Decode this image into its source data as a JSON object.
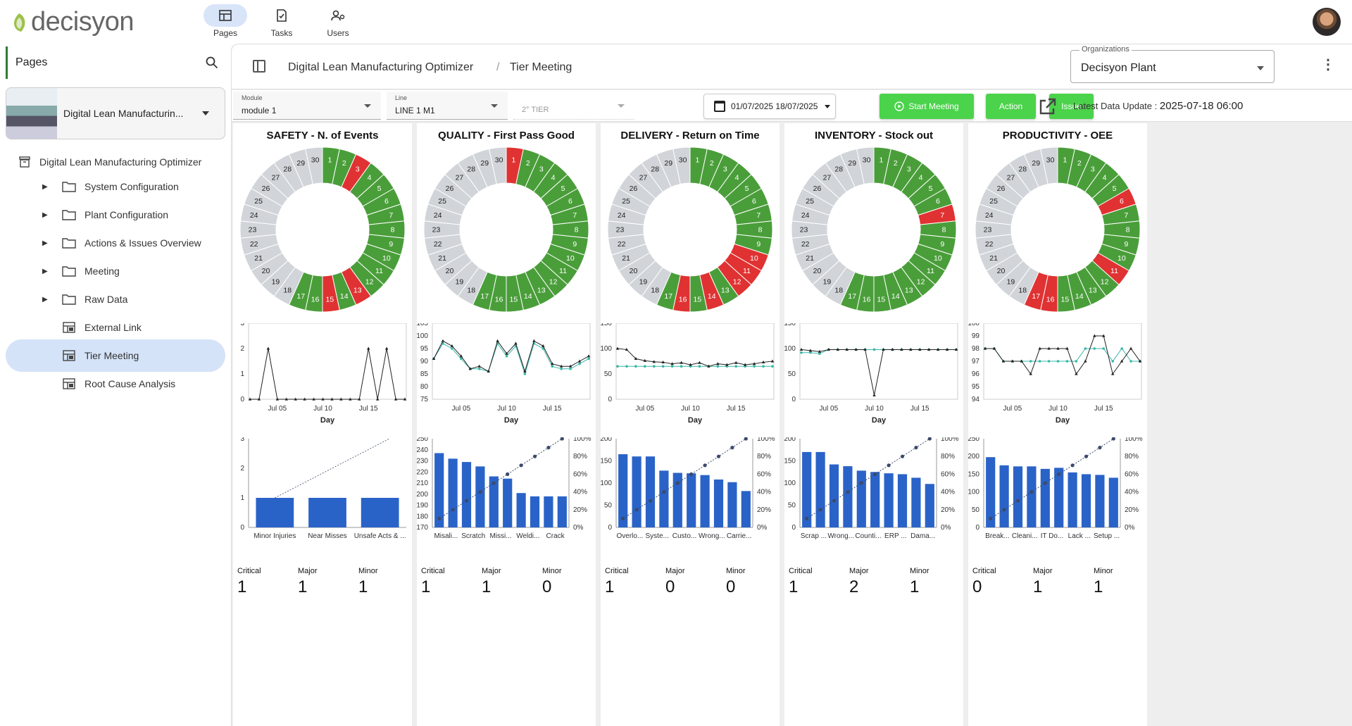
{
  "header": {
    "brand": "decisyon",
    "nav": [
      {
        "label": "Pages",
        "icon": "pages-icon",
        "active": true
      },
      {
        "label": "Tasks",
        "icon": "tasks-icon",
        "active": false
      },
      {
        "label": "Users",
        "icon": "users-icon",
        "active": false
      }
    ]
  },
  "sidebar": {
    "title": "Pages",
    "module_card": {
      "label": "Digital Lean Manufacturin..."
    },
    "root": "Digital Lean Manufacturing Optimizer",
    "items": [
      {
        "label": "System Configuration",
        "type": "folder",
        "expandable": true,
        "active": false
      },
      {
        "label": "Plant Configuration",
        "type": "folder",
        "expandable": true,
        "active": false
      },
      {
        "label": "Actions & Issues Overview",
        "type": "folder",
        "expandable": true,
        "active": false
      },
      {
        "label": "Meeting",
        "type": "folder",
        "expandable": true,
        "active": false
      },
      {
        "label": "Raw Data",
        "type": "folder",
        "expandable": true,
        "active": false
      },
      {
        "label": "External Link",
        "type": "page",
        "expandable": false,
        "active": false
      },
      {
        "label": "Tier Meeting",
        "type": "page",
        "expandable": false,
        "active": true
      },
      {
        "label": "Root Cause Analysis",
        "type": "page",
        "expandable": false,
        "active": false
      }
    ]
  },
  "breadcrumb": {
    "root": "Digital Lean Manufacturing Optimizer",
    "sep": "/",
    "current": "Tier Meeting"
  },
  "organization": {
    "label": "Organizations",
    "value": "Decisyon Plant"
  },
  "filters": {
    "module": {
      "label": "Module",
      "value": "module 1"
    },
    "line": {
      "label": "Line",
      "value": "LINE 1 M1"
    },
    "tier": {
      "placeholder": "2° TIER"
    },
    "date_range": "01/07/2025 18/07/2025",
    "buttons": {
      "start_meeting": "Start Meeting",
      "action": "Action",
      "issue": "Issue"
    },
    "latest_label": "Latest Data Update : ",
    "latest_value": "2025-07-18 06:00"
  },
  "colors": {
    "green": "#4a9e3a",
    "red": "#e03232",
    "grey": "#d1d5d9",
    "bar": "#2a63c8",
    "accent_line": "#39b7a9",
    "button_green": "#4bd34b"
  },
  "severity_labels": [
    "Critical",
    "Major",
    "Minor"
  ],
  "line_x_ticks": [
    "Jul 05",
    "Jul 10",
    "Jul 15"
  ],
  "line_x_label": "Day",
  "chart_data": [
    {
      "type": "donut",
      "title": "SAFETY - N. of Events",
      "days": 30,
      "status": [
        "g",
        "g",
        "r",
        "g",
        "g",
        "g",
        "g",
        "g",
        "g",
        "g",
        "g",
        "g",
        "r",
        "g",
        "r",
        "g",
        "g",
        "x",
        "x",
        "x",
        "x",
        "x",
        "x",
        "x",
        "x",
        "x",
        "x",
        "x",
        "x",
        "x"
      ],
      "line": {
        "ylim": [
          0,
          3
        ],
        "yticks": [
          0,
          1,
          2,
          3
        ],
        "series": [
          [
            0,
            0,
            2,
            0,
            0,
            0,
            0,
            0,
            0,
            0,
            0,
            0,
            0,
            2,
            0,
            2,
            0,
            0
          ]
        ],
        "markers": [
          "tri"
        ]
      },
      "pareto": {
        "categories": [
          "Minor Injuries",
          "Near Misses",
          "Unsafe Acts & ..."
        ],
        "values": [
          1,
          1,
          1
        ],
        "ylim": [
          0,
          3
        ],
        "yticks": [
          0,
          1,
          2,
          3
        ],
        "pct": null
      },
      "severity": {
        "Critical": 1,
        "Major": 1,
        "Minor": 1
      }
    },
    {
      "type": "donut",
      "title": "QUALITY - First Pass Good",
      "days": 30,
      "status": [
        "r",
        "g",
        "g",
        "g",
        "g",
        "g",
        "g",
        "g",
        "g",
        "g",
        "g",
        "g",
        "g",
        "g",
        "g",
        "g",
        "g",
        "x",
        "x",
        "x",
        "x",
        "x",
        "x",
        "x",
        "x",
        "x",
        "x",
        "x",
        "x",
        "x"
      ],
      "line": {
        "ylim": [
          75,
          105
        ],
        "yticks": [
          75,
          80,
          85,
          90,
          95,
          100,
          105
        ],
        "series": [
          [
            91,
            98,
            96,
            92,
            87,
            88,
            86,
            98,
            93,
            97,
            86,
            98,
            96,
            89,
            88,
            88,
            90,
            92
          ],
          [
            91,
            97,
            95,
            91,
            87,
            87,
            86,
            97,
            92,
            96,
            85,
            97,
            95,
            88,
            87,
            87,
            89,
            91
          ]
        ],
        "markers": [
          "tri",
          "dot"
        ]
      },
      "pareto": {
        "categories": [
          "Misali...",
          "Scratch",
          "Missi...",
          "Weldi...",
          "Crack"
        ],
        "values": [
          237,
          232,
          229,
          225,
          216,
          214,
          201,
          198,
          198,
          198
        ],
        "ylim": [
          170,
          250
        ],
        "yticks": [
          170,
          180,
          190,
          200,
          210,
          220,
          230,
          240,
          250
        ],
        "pct": [
          10,
          20,
          30,
          40,
          50,
          60,
          70,
          80,
          90,
          100
        ]
      },
      "severity": {
        "Critical": 1,
        "Major": 1,
        "Minor": 0
      }
    },
    {
      "type": "donut",
      "title": "DELIVERY - Return on Time",
      "days": 30,
      "status": [
        "g",
        "g",
        "g",
        "g",
        "g",
        "g",
        "g",
        "g",
        "g",
        "r",
        "r",
        "r",
        "g",
        "r",
        "g",
        "r",
        "g",
        "x",
        "x",
        "x",
        "x",
        "x",
        "x",
        "x",
        "x",
        "x",
        "x",
        "x",
        "x",
        "x"
      ],
      "line": {
        "ylim": [
          0,
          150
        ],
        "yticks": [
          0,
          50,
          100,
          150
        ],
        "series": [
          [
            100,
            98,
            80,
            76,
            74,
            73,
            70,
            72,
            68,
            72,
            65,
            70,
            68,
            72,
            68,
            70,
            73,
            75
          ],
          [
            65,
            65,
            65,
            65,
            65,
            65,
            65,
            65,
            65,
            65,
            65,
            65,
            65,
            65,
            65,
            65,
            65,
            65
          ]
        ],
        "markers": [
          "tri",
          "dot"
        ]
      },
      "pareto": {
        "categories": [
          "Overlo...",
          "Syste...",
          "Custo...",
          "Wrong...",
          "Carrie..."
        ],
        "values": [
          165,
          160,
          160,
          128,
          123,
          122,
          118,
          108,
          102,
          82
        ],
        "ylim": [
          0,
          200
        ],
        "yticks": [
          0,
          50,
          100,
          150,
          200
        ],
        "pct": [
          10,
          20,
          30,
          40,
          50,
          60,
          70,
          80,
          90,
          100
        ]
      },
      "severity": {
        "Critical": 1,
        "Major": 0,
        "Minor": 0
      }
    },
    {
      "type": "donut",
      "title": "INVENTORY - Stock out",
      "days": 30,
      "status": [
        "g",
        "g",
        "g",
        "g",
        "g",
        "g",
        "r",
        "g",
        "g",
        "g",
        "g",
        "g",
        "g",
        "g",
        "g",
        "g",
        "g",
        "x",
        "x",
        "x",
        "x",
        "x",
        "x",
        "x",
        "x",
        "x",
        "x",
        "x",
        "x",
        "x"
      ],
      "line": {
        "ylim": [
          0,
          150
        ],
        "yticks": [
          0,
          50,
          100,
          150
        ],
        "series": [
          [
            98,
            96,
            94,
            98,
            98,
            98,
            98,
            98,
            8,
            98,
            98,
            98,
            98,
            98,
            98,
            98,
            98,
            98
          ],
          [
            92,
            92,
            90,
            98,
            98,
            98,
            98,
            98,
            98,
            98,
            98,
            98,
            98,
            98,
            98,
            98,
            98,
            98
          ]
        ],
        "markers": [
          "tri",
          "dot"
        ]
      },
      "pareto": {
        "categories": [
          "Scrap ...",
          "Wrong...",
          "Counti...",
          "ERP ...",
          "Dama..."
        ],
        "values": [
          170,
          170,
          142,
          138,
          128,
          125,
          122,
          120,
          112,
          98
        ],
        "ylim": [
          0,
          200
        ],
        "yticks": [
          0,
          50,
          100,
          150,
          200
        ],
        "pct": [
          10,
          20,
          30,
          40,
          50,
          60,
          70,
          80,
          90,
          100
        ]
      },
      "severity": {
        "Critical": 1,
        "Major": 2,
        "Minor": 1
      }
    },
    {
      "type": "donut",
      "title": "PRODUCTIVITY - OEE",
      "days": 30,
      "status": [
        "g",
        "g",
        "g",
        "g",
        "g",
        "r",
        "g",
        "g",
        "g",
        "g",
        "r",
        "g",
        "g",
        "g",
        "g",
        "r",
        "r",
        "x",
        "x",
        "x",
        "x",
        "x",
        "x",
        "x",
        "x",
        "x",
        "x",
        "x",
        "x",
        "x"
      ],
      "line": {
        "ylim": [
          94,
          100
        ],
        "yticks": [
          94,
          95,
          96,
          97,
          98,
          99,
          100
        ],
        "series": [
          [
            98,
            98,
            97,
            97,
            97,
            96,
            98,
            98,
            98,
            98,
            96,
            97,
            99,
            99,
            96,
            97,
            98,
            97
          ],
          [
            98,
            98,
            97,
            97,
            97,
            97,
            97,
            97,
            97,
            97,
            97,
            98,
            98,
            98,
            97,
            98,
            97,
            97
          ]
        ],
        "markers": [
          "tri",
          "dot"
        ]
      },
      "pareto": {
        "categories": [
          "Break...",
          "Cleani...",
          "IT Do...",
          "Lack ...",
          "Setup ..."
        ],
        "values": [
          198,
          175,
          172,
          172,
          165,
          168,
          155,
          150,
          148,
          140
        ],
        "ylim": [
          0,
          250
        ],
        "yticks": [
          0,
          50,
          100,
          150,
          200,
          250
        ],
        "pct": [
          10,
          20,
          30,
          40,
          50,
          60,
          70,
          80,
          90,
          100
        ]
      },
      "severity": {
        "Critical": 0,
        "Major": 1,
        "Minor": 1
      }
    }
  ]
}
